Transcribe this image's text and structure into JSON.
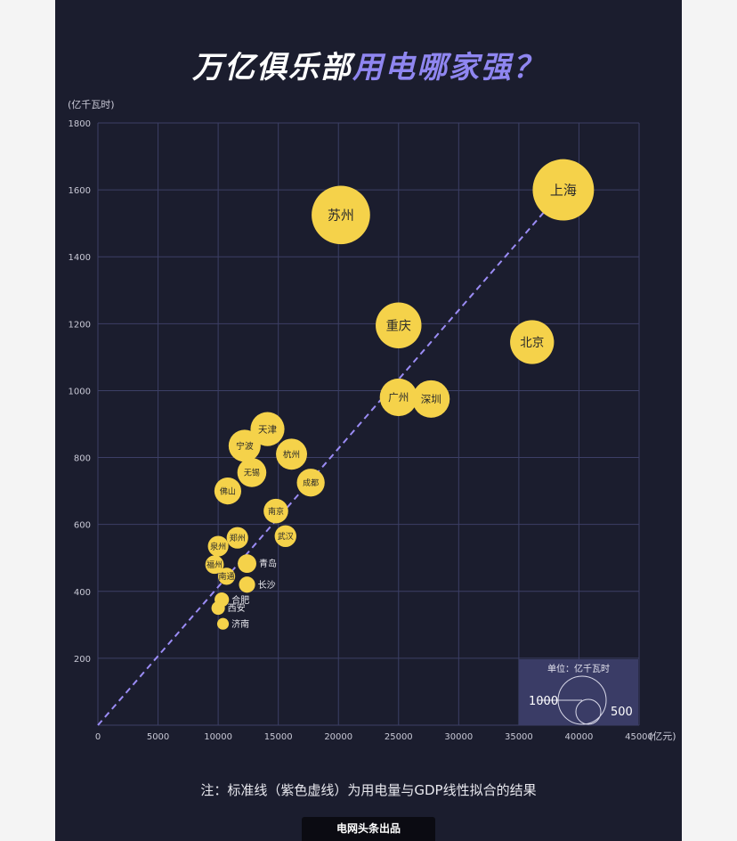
{
  "title": {
    "part1": "万亿俱乐部",
    "part2": "用电哪家强？"
  },
  "note": "注：标准线（紫色虚线）为用电量与GDP线性拟合的结果",
  "footer": "电网头条出品",
  "colors": {
    "background": "#1b1d2e",
    "bubble": "#f5d24a",
    "trend_line": "#9b8cf5",
    "grid": "#3c3f66",
    "title_accent": "#8f86f0"
  },
  "chart_data": {
    "type": "scatter",
    "title": "万亿俱乐部用电哪家强？",
    "xlabel": "",
    "ylabel": "",
    "x_unit": "(亿元)",
    "y_unit": "(亿千瓦时)",
    "xlim": [
      0,
      45000
    ],
    "ylim": [
      0,
      1800
    ],
    "x_ticks": [
      0,
      5000,
      10000,
      15000,
      20000,
      25000,
      30000,
      35000,
      40000,
      45000
    ],
    "y_ticks": [
      200,
      400,
      600,
      800,
      1000,
      1200,
      1400,
      1600,
      1800
    ],
    "grid": true,
    "trend_line": {
      "from": [
        0,
        0
      ],
      "to": [
        38700,
        1600
      ],
      "style": "dashed"
    },
    "size_legend": {
      "title": "单位：亿千瓦时",
      "values": [
        1000,
        500
      ]
    },
    "points": [
      {
        "city": "上海",
        "x": 38700,
        "y": 1600,
        "size": 1600,
        "label_side": "in"
      },
      {
        "city": "苏州",
        "x": 20200,
        "y": 1525,
        "size": 1525,
        "label_side": "in"
      },
      {
        "city": "北京",
        "x": 36100,
        "y": 1145,
        "size": 1145,
        "label_side": "in"
      },
      {
        "city": "重庆",
        "x": 25000,
        "y": 1195,
        "size": 1195,
        "label_side": "in"
      },
      {
        "city": "广州",
        "x": 25000,
        "y": 980,
        "size": 980,
        "label_side": "in"
      },
      {
        "city": "深圳",
        "x": 27700,
        "y": 975,
        "size": 975,
        "label_side": "in"
      },
      {
        "city": "天津",
        "x": 14100,
        "y": 885,
        "size": 885,
        "label_side": "in"
      },
      {
        "city": "宁波",
        "x": 12200,
        "y": 835,
        "size": 835,
        "label_side": "in"
      },
      {
        "city": "杭州",
        "x": 16100,
        "y": 810,
        "size": 810,
        "label_side": "in"
      },
      {
        "city": "无锡",
        "x": 12800,
        "y": 755,
        "size": 755,
        "label_side": "in"
      },
      {
        "city": "佛山",
        "x": 10800,
        "y": 700,
        "size": 700,
        "label_side": "in"
      },
      {
        "city": "成都",
        "x": 17700,
        "y": 725,
        "size": 725,
        "label_side": "in"
      },
      {
        "city": "南京",
        "x": 14800,
        "y": 640,
        "size": 640,
        "label_side": "in"
      },
      {
        "city": "武汉",
        "x": 15600,
        "y": 565,
        "size": 565,
        "label_side": "in"
      },
      {
        "city": "郑州",
        "x": 11600,
        "y": 560,
        "size": 560,
        "label_side": "in"
      },
      {
        "city": "泉州",
        "x": 10000,
        "y": 535,
        "size": 535,
        "label_side": "in"
      },
      {
        "city": "福州",
        "x": 9700,
        "y": 480,
        "size": 480,
        "label_side": "in"
      },
      {
        "city": "青岛",
        "x": 12400,
        "y": 483,
        "size": 483,
        "label_side": "right"
      },
      {
        "city": "南通",
        "x": 10700,
        "y": 445,
        "size": 445,
        "label_side": "in"
      },
      {
        "city": "长沙",
        "x": 12400,
        "y": 420,
        "size": 420,
        "label_side": "right"
      },
      {
        "city": "合肥",
        "x": 10300,
        "y": 375,
        "size": 375,
        "label_side": "right"
      },
      {
        "city": "西安",
        "x": 10000,
        "y": 350,
        "size": 350,
        "label_side": "right"
      },
      {
        "city": "济南",
        "x": 10400,
        "y": 303,
        "size": 303,
        "label_side": "right"
      }
    ]
  }
}
